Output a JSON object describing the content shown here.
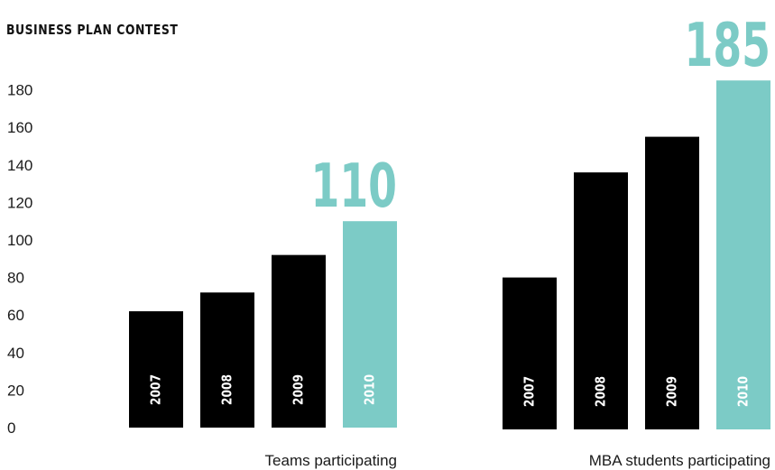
{
  "chart_data": {
    "type": "bar",
    "title": "BUSINESS PLAN CONTEST",
    "y_ticks": [
      "0",
      "20",
      "40",
      "60",
      "80",
      "100",
      "120",
      "140",
      "160",
      "180"
    ],
    "ylim": [
      0,
      185
    ],
    "grid": false,
    "groups": [
      {
        "label": "Teams participating",
        "categories": [
          "2007",
          "2008",
          "2009",
          "2010"
        ],
        "values": [
          62,
          72,
          92,
          110
        ],
        "highlight_label": "110"
      },
      {
        "label": "MBA students participating",
        "categories": [
          "2007",
          "2008",
          "2009",
          "2010"
        ],
        "values": [
          80,
          136,
          155,
          185
        ],
        "highlight_label": "185"
      }
    ],
    "colors": {
      "default": "#000000",
      "highlight": "#7ccbc6"
    }
  }
}
